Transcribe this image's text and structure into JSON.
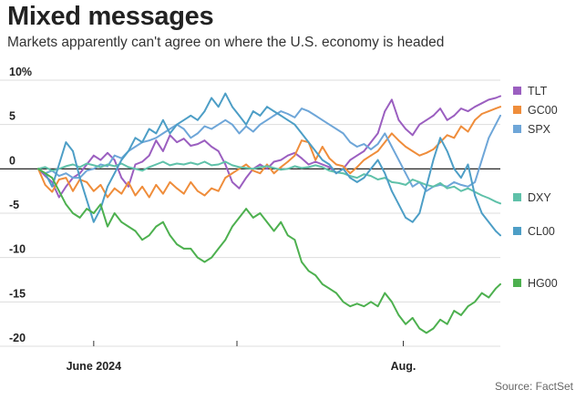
{
  "title": "Mixed messages",
  "subtitle": "Markets apparently can't agree on where the U.S. economy is headed",
  "source": "Source: FactSet",
  "chart_data": {
    "type": "line",
    "title": "Mixed messages",
    "subtitle": "Markets apparently can't agree on where the U.S. economy is headed",
    "ylim": [
      -20,
      10
    ],
    "yticks": [
      {
        "value": 10,
        "label": "10%"
      },
      {
        "value": 5,
        "label": "5"
      },
      {
        "value": 0,
        "label": "0"
      },
      {
        "value": -5,
        "label": "-5"
      },
      {
        "value": -10,
        "label": "-10"
      },
      {
        "value": -15,
        "label": "-15"
      },
      {
        "value": -20,
        "label": "-20"
      }
    ],
    "xlim": [
      0,
      100
    ],
    "xticks": [
      {
        "value": 12,
        "label": "June 2024"
      },
      {
        "value": 79,
        "label": "Aug."
      }
    ],
    "xminor": [
      43
    ],
    "zero_line": true,
    "grid": "horizontal",
    "legend": "right",
    "series": [
      {
        "name": "TLT",
        "color": "#9b5fc0",
        "x": [
          0,
          1.5,
          3,
          4.5,
          6,
          7.5,
          9,
          10.5,
          12,
          13.5,
          15,
          16.5,
          18,
          19.5,
          21,
          22.5,
          24,
          25.5,
          27,
          28.5,
          30,
          31.5,
          33,
          34.5,
          36,
          37.5,
          39,
          40.5,
          42,
          43.5,
          45,
          46.5,
          48,
          49.5,
          51,
          52.5,
          54,
          55.5,
          57,
          58.5,
          60,
          61.5,
          63,
          64.5,
          66,
          67.5,
          69,
          70.5,
          72,
          73.5,
          75,
          76.5,
          78,
          79.5,
          81,
          82.5,
          84,
          85.5,
          87,
          88.5,
          90,
          91.5,
          93,
          94.5,
          96,
          97.5,
          99,
          100
        ],
        "y": [
          0,
          -0.8,
          -1.5,
          -3.2,
          -2.0,
          -1.0,
          -0.5,
          0.5,
          1.5,
          1.0,
          1.8,
          1.0,
          -1.0,
          -2.0,
          0.5,
          0.8,
          1.5,
          3.2,
          2.0,
          3.8,
          3.0,
          3.4,
          2.6,
          2.8,
          3.2,
          2.5,
          2.0,
          0.5,
          -1.5,
          -2.2,
          -1.0,
          0.0,
          0.5,
          0.0,
          0.8,
          1.0,
          1.5,
          1.8,
          1.2,
          0.5,
          0.8,
          0.5,
          0.2,
          -0.5,
          0.0,
          1.0,
          1.5,
          2.0,
          3.0,
          4.0,
          6.5,
          7.8,
          5.5,
          4.5,
          3.8,
          5.0,
          5.5,
          6.0,
          6.8,
          5.5,
          6.0,
          6.8,
          6.5,
          7.0,
          7.4,
          7.8,
          8.0,
          8.2
        ]
      },
      {
        "name": "GC00",
        "color": "#ef8d3b",
        "x": [
          0,
          1.5,
          3,
          4.5,
          6,
          7.5,
          9,
          10.5,
          12,
          13.5,
          15,
          16.5,
          18,
          19.5,
          21,
          22.5,
          24,
          25.5,
          27,
          28.5,
          30,
          31.5,
          33,
          34.5,
          36,
          37.5,
          39,
          40.5,
          42,
          43.5,
          45,
          46.5,
          48,
          49.5,
          51,
          52.5,
          54,
          55.5,
          57,
          58.5,
          60,
          61.5,
          63,
          64.5,
          66,
          67.5,
          69,
          70.5,
          72,
          73.5,
          75,
          76.5,
          78,
          79.5,
          81,
          82.5,
          84,
          85.5,
          87,
          88.5,
          90,
          91.5,
          93,
          94.5,
          96,
          97.5,
          99,
          100
        ],
        "y": [
          0,
          -1.8,
          -2.6,
          -1.2,
          -1.0,
          -2.5,
          -1.2,
          -1.5,
          -2.5,
          -1.8,
          -3.2,
          -2.2,
          -2.8,
          -1.5,
          -3.0,
          -2.0,
          -3.2,
          -1.8,
          -2.8,
          -1.5,
          -2.2,
          -2.8,
          -1.5,
          -2.5,
          -3.0,
          -2.2,
          -2.5,
          -1.0,
          -0.5,
          0.0,
          0.5,
          -0.2,
          -0.5,
          0.5,
          -0.5,
          0.2,
          0.8,
          1.5,
          3.2,
          3.0,
          1.0,
          2.5,
          1.2,
          0.5,
          0.3,
          -0.5,
          0.2,
          1.0,
          1.5,
          2.0,
          3.0,
          4.0,
          3.2,
          2.5,
          2.0,
          1.5,
          1.8,
          2.2,
          3.0,
          3.8,
          3.5,
          4.8,
          4.2,
          5.5,
          6.2,
          6.5,
          6.8,
          7.0
        ]
      },
      {
        "name": "SPX",
        "color": "#6ea6d8",
        "x": [
          0,
          1.5,
          3,
          4.5,
          6,
          7.5,
          9,
          10.5,
          12,
          13.5,
          15,
          16.5,
          18,
          19.5,
          21,
          22.5,
          24,
          25.5,
          27,
          28.5,
          30,
          31.5,
          33,
          34.5,
          36,
          37.5,
          39,
          40.5,
          42,
          43.5,
          45,
          46.5,
          48,
          49.5,
          51,
          52.5,
          54,
          55.5,
          57,
          58.5,
          60,
          61.5,
          63,
          64.5,
          66,
          67.5,
          69,
          70.5,
          72,
          73.5,
          75,
          76.5,
          78,
          79.5,
          81,
          82.5,
          84,
          85.5,
          87,
          88.5,
          90,
          91.5,
          93,
          94.5,
          96,
          97.5,
          99,
          100
        ],
        "y": [
          0,
          -0.5,
          -0.2,
          -0.8,
          -0.5,
          -1.0,
          -1.0,
          -0.2,
          0.0,
          0.5,
          0.3,
          1.5,
          1.2,
          2.0,
          2.5,
          3.0,
          3.2,
          3.5,
          4.0,
          4.5,
          5.0,
          4.5,
          3.5,
          4.0,
          4.8,
          4.5,
          5.0,
          5.5,
          5.0,
          4.0,
          4.8,
          4.2,
          5.0,
          5.5,
          6.0,
          6.5,
          6.2,
          5.8,
          6.8,
          6.5,
          6.0,
          5.5,
          5.0,
          4.5,
          4.0,
          3.0,
          2.5,
          2.8,
          2.2,
          2.8,
          4.0,
          2.5,
          1.0,
          -0.5,
          -2.0,
          -1.5,
          -2.5,
          -2.0,
          -1.8,
          -2.0,
          -1.5,
          -1.8,
          -2.0,
          -1.5,
          1.0,
          3.5,
          5.0,
          6.0
        ]
      },
      {
        "name": "DXY",
        "color": "#5fc1a9",
        "x": [
          0,
          1.5,
          3,
          4.5,
          6,
          7.5,
          9,
          10.5,
          12,
          13.5,
          15,
          16.5,
          18,
          19.5,
          21,
          22.5,
          24,
          25.5,
          27,
          28.5,
          30,
          31.5,
          33,
          34.5,
          36,
          37.5,
          39,
          40.5,
          42,
          43.5,
          45,
          46.5,
          48,
          49.5,
          51,
          52.5,
          54,
          55.5,
          57,
          58.5,
          60,
          61.5,
          63,
          64.5,
          66,
          67.5,
          69,
          70.5,
          72,
          73.5,
          75,
          76.5,
          78,
          79.5,
          81,
          82.5,
          84,
          85.5,
          87,
          88.5,
          90,
          91.5,
          93,
          94.5,
          96,
          97.5,
          99,
          100
        ],
        "y": [
          0,
          0.2,
          -0.2,
          0.0,
          0.3,
          0.5,
          0.2,
          0.6,
          0.4,
          0.2,
          0.5,
          0.3,
          0.6,
          0.2,
          0.0,
          -0.2,
          0.2,
          0.5,
          0.8,
          0.4,
          0.6,
          0.5,
          0.7,
          0.5,
          0.8,
          0.4,
          0.5,
          0.8,
          0.4,
          0.2,
          0.1,
          0.0,
          0.2,
          0.3,
          0.1,
          -0.1,
          0.0,
          0.3,
          0.1,
          0.2,
          0.4,
          0.2,
          -0.2,
          -0.4,
          -0.5,
          -0.8,
          -1.0,
          -0.6,
          -0.8,
          -1.2,
          -1.0,
          -1.5,
          -1.6,
          -1.8,
          -1.2,
          -1.5,
          -1.8,
          -2.0,
          -1.6,
          -2.2,
          -2.0,
          -2.5,
          -2.2,
          -2.6,
          -3.0,
          -3.3,
          -3.7,
          -3.9
        ]
      },
      {
        "name": "CL00",
        "color": "#4d9ec6",
        "x": [
          0,
          1.5,
          3,
          4.5,
          6,
          7.5,
          9,
          10.5,
          12,
          13.5,
          15,
          16.5,
          18,
          19.5,
          21,
          22.5,
          24,
          25.5,
          27,
          28.5,
          30,
          31.5,
          33,
          34.5,
          36,
          37.5,
          39,
          40.5,
          42,
          43.5,
          45,
          46.5,
          48,
          49.5,
          51,
          52.5,
          54,
          55.5,
          57,
          58.5,
          60,
          61.5,
          63,
          64.5,
          66,
          67.5,
          69,
          70.5,
          72,
          73.5,
          75,
          76.5,
          78,
          79.5,
          81,
          82.5,
          84,
          85.5,
          87,
          88.5,
          90,
          91.5,
          93,
          94.5,
          96,
          97.5,
          99,
          100
        ],
        "y": [
          0,
          -0.5,
          -2.0,
          0.5,
          3.0,
          2.0,
          -1.0,
          -3.5,
          -6.0,
          -4.5,
          -2.0,
          -0.5,
          1.0,
          2.0,
          3.5,
          3.0,
          4.5,
          4.0,
          5.5,
          4.0,
          5.0,
          5.5,
          6.0,
          5.5,
          6.5,
          8.0,
          7.0,
          8.5,
          7.0,
          6.0,
          5.0,
          6.5,
          6.0,
          7.0,
          6.5,
          6.0,
          5.5,
          5.0,
          4.0,
          3.0,
          2.0,
          1.0,
          0.5,
          -0.5,
          0.0,
          -1.0,
          -1.5,
          -1.0,
          0.0,
          1.0,
          -0.5,
          -2.5,
          -4.0,
          -5.5,
          -6.0,
          -5.0,
          -2.0,
          1.0,
          3.5,
          2.0,
          0.0,
          -1.0,
          0.5,
          -3.0,
          -5.0,
          -6.0,
          -7.0,
          -7.5
        ]
      },
      {
        "name": "HG00",
        "color": "#4db04f",
        "x": [
          0,
          1.5,
          3,
          4.5,
          6,
          7.5,
          9,
          10.5,
          12,
          13.5,
          15,
          16.5,
          18,
          19.5,
          21,
          22.5,
          24,
          25.5,
          27,
          28.5,
          30,
          31.5,
          33,
          34.5,
          36,
          37.5,
          39,
          40.5,
          42,
          43.5,
          45,
          46.5,
          48,
          49.5,
          51,
          52.5,
          54,
          55.5,
          57,
          58.5,
          60,
          61.5,
          63,
          64.5,
          66,
          67.5,
          69,
          70.5,
          72,
          73.5,
          75,
          76.5,
          78,
          79.5,
          81,
          82.5,
          84,
          85.5,
          87,
          88.5,
          90,
          91.5,
          93,
          94.5,
          96,
          97.5,
          99,
          100
        ],
        "y": [
          0,
          -0.5,
          -1.0,
          -2.5,
          -4.0,
          -5.0,
          -5.5,
          -4.5,
          -5.0,
          -4.0,
          -6.5,
          -5.0,
          -6.0,
          -6.5,
          -7.0,
          -8.0,
          -7.5,
          -6.5,
          -6.0,
          -7.5,
          -8.5,
          -9.0,
          -9.0,
          -10.0,
          -10.5,
          -10.0,
          -9.0,
          -8.0,
          -6.5,
          -5.5,
          -4.5,
          -5.5,
          -5.0,
          -6.0,
          -7.0,
          -6.0,
          -7.5,
          -8.0,
          -10.5,
          -11.5,
          -12.0,
          -13.0,
          -13.5,
          -14.0,
          -15.0,
          -15.5,
          -15.2,
          -15.5,
          -15.0,
          -15.5,
          -14.0,
          -15.0,
          -16.5,
          -17.5,
          -16.8,
          -18.0,
          -18.5,
          -18.0,
          -17.0,
          -17.5,
          -16.0,
          -16.5,
          -15.5,
          -15.0,
          -14.0,
          -14.5,
          -13.5,
          -13.0
        ]
      }
    ]
  }
}
